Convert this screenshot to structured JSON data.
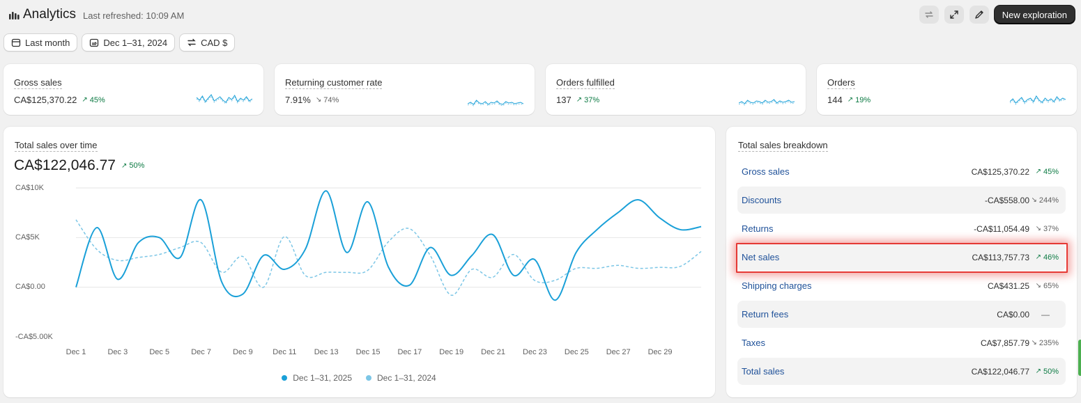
{
  "header": {
    "title": "Analytics",
    "last_refreshed": "Last refreshed: 10:09 AM",
    "new_exploration_label": "New exploration"
  },
  "filters": [
    {
      "label": "Last month",
      "icon": "calendar-icon"
    },
    {
      "label": "Dec 1–31, 2024",
      "icon": "compare-icon"
    },
    {
      "label": "CAD $",
      "icon": "currency-icon"
    }
  ],
  "kpis": [
    {
      "label": "Gross sales",
      "value": "CA$125,370.22",
      "delta": "45%",
      "trend": "up"
    },
    {
      "label": "Returning customer rate",
      "value": "7.91%",
      "delta": "74%",
      "trend": "down"
    },
    {
      "label": "Orders fulfilled",
      "value": "137",
      "delta": "37%",
      "trend": "up"
    },
    {
      "label": "Orders",
      "value": "144",
      "delta": "19%",
      "trend": "up"
    }
  ],
  "sales_chart": {
    "title": "Total sales over time",
    "total": "CA$122,046.77",
    "delta": "50%",
    "y_ticks": [
      "CA$10K",
      "CA$5K",
      "CA$0.00",
      "-CA$5.00K"
    ],
    "x_ticks": [
      "Dec 1",
      "Dec 3",
      "Dec 5",
      "Dec 7",
      "Dec 9",
      "Dec 11",
      "Dec 13",
      "Dec 15",
      "Dec 17",
      "Dec 19",
      "Dec 21",
      "Dec 23",
      "Dec 25",
      "Dec 27",
      "Dec 29"
    ],
    "legend": [
      "Dec 1–31, 2025",
      "Dec 1–31, 2024"
    ]
  },
  "chart_data": {
    "type": "line",
    "x": [
      "Dec 1",
      "Dec 2",
      "Dec 3",
      "Dec 4",
      "Dec 5",
      "Dec 6",
      "Dec 7",
      "Dec 8",
      "Dec 9",
      "Dec 10",
      "Dec 11",
      "Dec 12",
      "Dec 13",
      "Dec 14",
      "Dec 15",
      "Dec 16",
      "Dec 17",
      "Dec 18",
      "Dec 19",
      "Dec 20",
      "Dec 21",
      "Dec 22",
      "Dec 23",
      "Dec 24",
      "Dec 25",
      "Dec 26",
      "Dec 27",
      "Dec 28",
      "Dec 29",
      "Dec 30",
      "Dec 31"
    ],
    "series": [
      {
        "name": "Dec 1–31, 2025",
        "values": [
          0,
          6000,
          800,
          4500,
          5000,
          3000,
          8800,
          500,
          -700,
          3200,
          1800,
          3800,
          9700,
          3500,
          8600,
          2000,
          200,
          4000,
          1200,
          3200,
          5300,
          1200,
          2800,
          -1300,
          3500,
          5800,
          7500,
          8800,
          7000,
          5800,
          6100
        ]
      },
      {
        "name": "Dec 1–31, 2024",
        "values": [
          6800,
          3800,
          2700,
          3000,
          3300,
          4000,
          4500,
          1500,
          3100,
          0,
          5100,
          1200,
          1500,
          1500,
          1700,
          4600,
          5900,
          3200,
          -800,
          1800,
          1000,
          3300,
          700,
          700,
          1900,
          1900,
          2200,
          1900,
          2000,
          2100,
          3600
        ]
      }
    ],
    "ylim": [
      -5000,
      10000
    ],
    "colors": [
      "#1aa0d8",
      "#7cc6e6"
    ],
    "grid": true,
    "legend_position": "bottom"
  },
  "breakdown": {
    "title": "Total sales breakdown",
    "rows": [
      {
        "label": "Gross sales",
        "value": "CA$125,370.22",
        "delta": "45%",
        "trend": "up"
      },
      {
        "label": "Discounts",
        "value": "-CA$558.00",
        "delta": "244%",
        "trend": "down"
      },
      {
        "label": "Returns",
        "value": "-CA$11,054.49",
        "delta": "37%",
        "trend": "down"
      },
      {
        "label": "Net sales",
        "value": "CA$113,757.73",
        "delta": "46%",
        "trend": "up"
      },
      {
        "label": "Shipping charges",
        "value": "CA$431.25",
        "delta": "65%",
        "trend": "down"
      },
      {
        "label": "Return fees",
        "value": "CA$0.00",
        "delta": "—",
        "trend": "none"
      },
      {
        "label": "Taxes",
        "value": "CA$7,857.79",
        "delta": "235%",
        "trend": "down"
      },
      {
        "label": "Total sales",
        "value": "CA$122,046.77",
        "delta": "50%",
        "trend": "up"
      }
    ]
  }
}
